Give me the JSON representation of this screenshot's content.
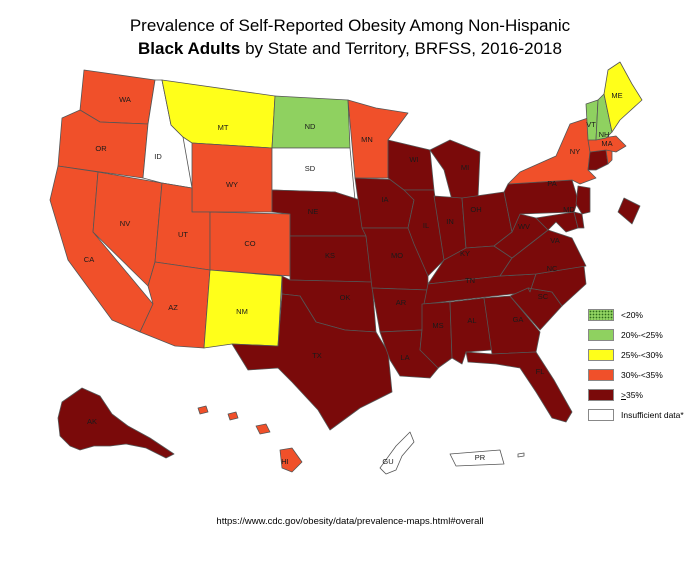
{
  "title": {
    "line1": "Prevalence of Self-Reported Obesity Among Non-Hispanic",
    "line2_bold": "Black Adults",
    "line2_rest": " by State and Territory, BRFSS, 2016-2018"
  },
  "colors": {
    "lt20": "#8fd160",
    "20_25": "#8fd160",
    "25_30": "#ffff1a",
    "30_35": "#f0502a",
    "ge35": "#7a0a0a",
    "insufficient": "#ffffff"
  },
  "legend": [
    {
      "label": "<20%",
      "category": "lt20"
    },
    {
      "label": "20%-<25%",
      "category": "20_25"
    },
    {
      "label": "25%-<30%",
      "category": "25_30"
    },
    {
      "label": "30%-<35%",
      "category": "30_35"
    },
    {
      "label": ">35%",
      "category": "ge35"
    },
    {
      "label": "Insufficient data*",
      "category": "insufficient"
    }
  ],
  "states": {
    "WA": {
      "label": "WA",
      "category": "30_35"
    },
    "OR": {
      "label": "OR",
      "category": "30_35"
    },
    "CA": {
      "label": "CA",
      "category": "30_35"
    },
    "NV": {
      "label": "NV",
      "category": "30_35"
    },
    "ID": {
      "label": "ID",
      "category": "insufficient"
    },
    "MT": {
      "label": "MT",
      "category": "25_30"
    },
    "WY": {
      "label": "WY",
      "category": "30_35"
    },
    "UT": {
      "label": "UT",
      "category": "30_35"
    },
    "AZ": {
      "label": "AZ",
      "category": "30_35"
    },
    "CO": {
      "label": "CO",
      "category": "30_35"
    },
    "NM": {
      "label": "NM",
      "category": "25_30"
    },
    "ND": {
      "label": "ND",
      "category": "20_25"
    },
    "SD": {
      "label": "SD",
      "category": "insufficient"
    },
    "NE": {
      "label": "NE",
      "category": "ge35"
    },
    "KS": {
      "label": "KS",
      "category": "ge35"
    },
    "OK": {
      "label": "OK",
      "category": "ge35"
    },
    "TX": {
      "label": "TX",
      "category": "ge35"
    },
    "MN": {
      "label": "MN",
      "category": "30_35"
    },
    "IA": {
      "label": "IA",
      "category": "ge35"
    },
    "MO": {
      "label": "MO",
      "category": "ge35"
    },
    "AR": {
      "label": "AR",
      "category": "ge35"
    },
    "LA": {
      "label": "LA",
      "category": "ge35"
    },
    "WI": {
      "label": "WI",
      "category": "ge35"
    },
    "IL": {
      "label": "IL",
      "category": "ge35"
    },
    "MI": {
      "label": "MI",
      "category": "ge35"
    },
    "IN": {
      "label": "IN",
      "category": "ge35"
    },
    "OH": {
      "label": "OH",
      "category": "ge35"
    },
    "KY": {
      "label": "KY",
      "category": "ge35"
    },
    "TN": {
      "label": "TN",
      "category": "ge35"
    },
    "MS": {
      "label": "MS",
      "category": "ge35"
    },
    "AL": {
      "label": "AL",
      "category": "ge35"
    },
    "GA": {
      "label": "GA",
      "category": "ge35"
    },
    "FL": {
      "label": "FL",
      "category": "ge35"
    },
    "SC": {
      "label": "SC",
      "category": "ge35"
    },
    "NC": {
      "label": "NC",
      "category": "ge35"
    },
    "VA": {
      "label": "VA",
      "category": "ge35"
    },
    "WV": {
      "label": "WV",
      "category": "ge35"
    },
    "PA": {
      "label": "PA",
      "category": "ge35"
    },
    "NY": {
      "label": "NY",
      "category": "30_35"
    },
    "MD": {
      "label": "MD",
      "category": "ge35"
    },
    "NJ": {
      "label": "NJ",
      "category": "ge35"
    },
    "DE": {
      "label": "DE",
      "category": "ge35"
    },
    "DC": {
      "label": "",
      "category": "ge35"
    },
    "CT": {
      "label": "",
      "category": "ge35"
    },
    "RI": {
      "label": "",
      "category": "30_35"
    },
    "MA": {
      "label": "MA",
      "category": "30_35"
    },
    "VT": {
      "label": "VT",
      "category": "20_25"
    },
    "NH": {
      "label": "NH",
      "category": "20_25"
    },
    "ME": {
      "label": "ME",
      "category": "25_30"
    },
    "AK": {
      "label": "AK",
      "category": "ge35"
    },
    "HI": {
      "label": "HI",
      "category": "30_35"
    },
    "GU": {
      "label": "GU",
      "category": "insufficient"
    },
    "PR": {
      "label": "PR",
      "category": "insufficient"
    }
  },
  "source": "https://www.cdc.gov/obesity/data/prevalence-maps.html#overall"
}
